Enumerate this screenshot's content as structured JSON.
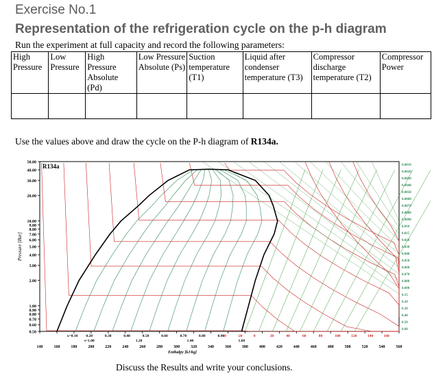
{
  "exercise": {
    "title": "Exercise No.1",
    "subtitle": "Representation of the refrigeration cycle on the p-h diagram",
    "instruction": "Run the experiment at full capacity and record the following parameters:"
  },
  "table": {
    "headers": [
      "High Pressure",
      "Low Pressure",
      "High Pressure Absolute (Pd)",
      "Low Pressure Absolute (Ps)",
      "Suction temperature (T1)",
      "Liquid after condenser temperature (T3)",
      "Compressor discharge temperature (T2)",
      "Compressor Power"
    ],
    "rows": [
      [
        "",
        "",
        "",
        "",
        "",
        "",
        "",
        ""
      ]
    ]
  },
  "use_text": {
    "prefix": "Use the values above and draw the cycle on the P-h diagram of ",
    "refrigerant": "R134a."
  },
  "chart_data": {
    "type": "diagram",
    "title": "R134a",
    "xlabel": "Enthalpy [kJ/kg]",
    "ylabel": "Pressure [Bar]",
    "x_ticks": [
      140,
      160,
      180,
      200,
      220,
      240,
      260,
      280,
      300,
      320,
      340,
      360,
      380,
      400,
      420,
      440,
      460,
      480,
      500,
      520,
      540,
      560
    ],
    "y_ticks": [
      "50.00",
      "40.00",
      "30.00",
      "20.00",
      "10.00",
      "9.00",
      "8.00",
      "7.00",
      "6.00",
      "5.00",
      "4.00",
      "3.00",
      "2.00",
      "1.00",
      "0.90",
      "0.80",
      "0.70",
      "0.60",
      "0.50"
    ],
    "y_values": [
      50,
      40,
      30,
      20,
      10,
      9,
      8,
      7,
      6,
      5,
      4,
      3,
      2,
      1,
      0.9,
      0.8,
      0.7,
      0.6,
      0.5
    ],
    "quality_labels": [
      "x=0.10",
      "0.20",
      "0.30",
      "0.40",
      "0.50",
      "0.60",
      "0.70",
      "0.80",
      "0.90"
    ],
    "entropy_labels": [
      "s=1.00",
      "1.20",
      "1.40",
      "1.60"
    ],
    "temperature_labels": [
      "-40",
      "-20",
      "0",
      "20",
      "40",
      "60",
      "80",
      "100",
      "120",
      "140",
      "160"
    ],
    "volume_labels": [
      "0.0010",
      "0.0020",
      "0.0030",
      "0.0040",
      "0.0050",
      "0.0060",
      "0.0070",
      "0.0080",
      "0.0090",
      "0.010",
      "0.015",
      "0.020",
      "0.030",
      "0.040",
      "0.050",
      "0.060",
      "0.070",
      "0.080",
      "0.090",
      "0.15",
      "0.20",
      "0.30",
      "0.40",
      "0.50",
      "0.60"
    ],
    "y_scale": "log",
    "xlim": [
      140,
      560
    ],
    "ylim": [
      0.5,
      50
    ],
    "grid": true,
    "colors": {
      "saturation": "#000000",
      "quality": "#2e8b57",
      "entropy": "#3a9a3a",
      "isotherm": "#cc2222",
      "isochore": "#4a9a4a",
      "axes": "#000000"
    }
  },
  "closing": "Discuss the Results and write your conclusions."
}
